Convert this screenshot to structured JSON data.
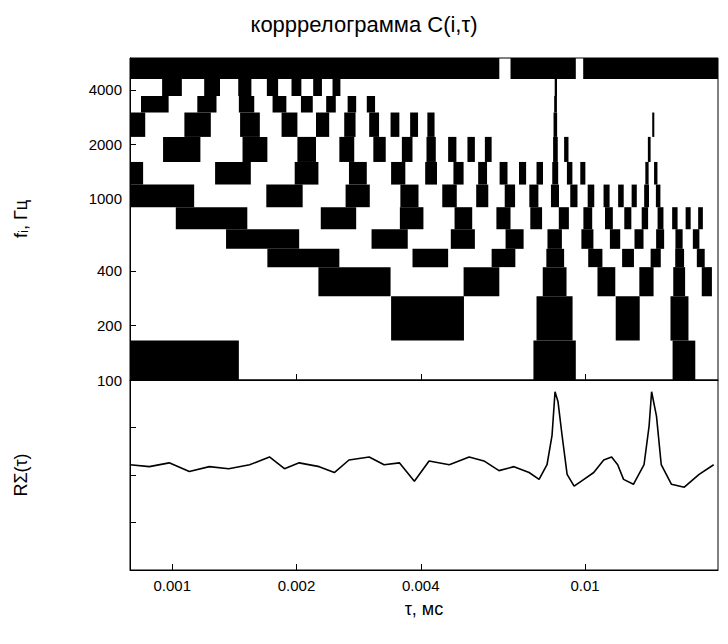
{
  "chart_data": [
    {
      "type": "heatmap",
      "title": "корррелограмма C(i,τ)",
      "y_label": "fᵢ, Гц",
      "log": true,
      "grid": false,
      "tick_labels": "y",
      "color": "#000000",
      "xlim": [
        0.00079,
        0.021
      ],
      "xticks": [
        0.001,
        0.002,
        0.004,
        0.01
      ],
      "ylim": [
        100,
        6000
      ],
      "yticks": [
        100,
        200,
        400,
        1000,
        2000,
        4000
      ],
      "rows": [
        {
          "f_range": [
            100,
            165
          ],
          "black": [
            [
              0.00079,
              0.00145
            ],
            [
              0.0075,
              0.0095
            ],
            [
              0.0163,
              0.0185
            ]
          ]
        },
        {
          "f_range": [
            165,
            290
          ],
          "black": [
            [
              0.00339,
              0.00509
            ],
            [
              0.00763,
              0.00933
            ],
            [
              0.01187,
              0.01357
            ],
            [
              0.01611,
              0.01781
            ]
          ]
        },
        {
          "f_range": [
            290,
            420
          ],
          "black": [
            [
              0.00226,
              0.00338
            ],
            [
              0.00508,
              0.0062
            ],
            [
              0.0079,
              0.00902
            ],
            [
              0.01072,
              0.01184
            ],
            [
              0.01354,
              0.01466
            ],
            [
              0.01636,
              0.01748
            ],
            [
              0.01918,
              0.0203
            ]
          ]
        },
        {
          "f_range": [
            420,
            530
          ],
          "black": [
            [
              0.0017,
              0.00254
            ],
            [
              0.00382,
              0.00466
            ],
            [
              0.00594,
              0.00678
            ],
            [
              0.00806,
              0.0089
            ],
            [
              0.01018,
              0.01102
            ],
            [
              0.0123,
              0.01314
            ],
            [
              0.01442,
              0.01526
            ],
            [
              0.01654,
              0.01738
            ],
            [
              0.01866,
              0.0195
            ]
          ]
        },
        {
          "f_range": [
            530,
            680
          ],
          "black": [
            [
              0.00135,
              0.00203
            ],
            [
              0.00304,
              0.00372
            ],
            [
              0.00473,
              0.00541
            ],
            [
              0.00642,
              0.0071
            ],
            [
              0.00811,
              0.00879
            ],
            [
              0.0098,
              0.01048
            ],
            [
              0.01149,
              0.01217
            ],
            [
              0.01318,
              0.01386
            ],
            [
              0.01487,
              0.01555
            ],
            [
              0.01656,
              0.01724
            ],
            [
              0.01825,
              0.01893
            ]
          ]
        },
        {
          "f_range": [
            680,
            900
          ],
          "black": [
            [
              0.00102,
              0.00152
            ],
            [
              0.00229,
              0.00279
            ],
            [
              0.00356,
              0.00406
            ],
            [
              0.00483,
              0.00533
            ],
            [
              0.0061,
              0.0066
            ],
            [
              0.00737,
              0.00787
            ],
            [
              0.00864,
              0.00914
            ],
            [
              0.00991,
              0.01041
            ],
            [
              0.01118,
              0.01168
            ],
            [
              0.01245,
              0.01295
            ],
            [
              0.01372,
              0.01422
            ],
            [
              0.01499,
              0.01549
            ],
            [
              0.01626,
              0.01676
            ],
            [
              0.01753,
              0.01803
            ],
            [
              0.0188,
              0.0193
            ]
          ]
        },
        {
          "f_range": [
            900,
            1200
          ],
          "black": [
            [
              0.00079,
              0.00113
            ],
            [
              0.00169,
              0.00207
            ],
            [
              0.00263,
              0.00301
            ],
            [
              0.00357,
              0.00395
            ],
            [
              0.00451,
              0.00489
            ],
            [
              0.00545,
              0.00583
            ],
            [
              0.00639,
              0.00677
            ],
            [
              0.00733,
              0.00771
            ],
            [
              0.00827,
              0.00865
            ],
            [
              0.00921,
              0.00959
            ],
            [
              0.01015,
              0.01053
            ],
            [
              0.01109,
              0.01147
            ],
            [
              0.01203,
              0.01241
            ],
            [
              0.01297,
              0.01335
            ],
            [
              0.01391,
              0.01429
            ],
            [
              0.01485,
              0.01523
            ]
          ]
        },
        {
          "f_range": [
            1200,
            1600
          ],
          "black": [
            [
              0.00079,
              0.00085
            ],
            [
              0.00127,
              0.00155
            ],
            [
              0.00198,
              0.00226
            ],
            [
              0.00268,
              0.00296
            ],
            [
              0.00339,
              0.00367
            ],
            [
              0.0041,
              0.00438
            ],
            [
              0.0048,
              0.00508
            ],
            [
              0.00551,
              0.00579
            ],
            [
              0.00621,
              0.00649
            ],
            [
              0.00692,
              0.0072
            ],
            [
              0.00763,
              0.00791
            ],
            [
              0.00833,
              0.00861
            ],
            [
              0.00904,
              0.00932
            ],
            [
              0.00974,
              0.01002
            ],
            [
              0.014,
              0.01426
            ],
            [
              0.0147,
              0.01498
            ]
          ]
        },
        {
          "f_range": [
            1600,
            2200
          ],
          "black": [
            [
              0.00095,
              0.00117
            ],
            [
              0.00148,
              0.0017
            ],
            [
              0.00201,
              0.00223
            ],
            [
              0.00254,
              0.00276
            ],
            [
              0.00307,
              0.00329
            ],
            [
              0.0036,
              0.00382
            ],
            [
              0.00413,
              0.00435
            ],
            [
              0.00466,
              0.00488
            ],
            [
              0.00519,
              0.00541
            ],
            [
              0.00572,
              0.00594
            ],
            [
              0.00837,
              0.00859
            ],
            [
              0.0089,
              0.00912
            ],
            [
              0.0142,
              0.01442
            ]
          ]
        },
        {
          "f_range": [
            2200,
            3000
          ],
          "black": [
            [
              0.00079,
              0.00086
            ],
            [
              0.00107,
              0.00124
            ],
            [
              0.00146,
              0.00163
            ],
            [
              0.00184,
              0.00201
            ],
            [
              0.00223,
              0.0024
            ],
            [
              0.00261,
              0.00278
            ],
            [
              0.003,
              0.00317
            ],
            [
              0.00338,
              0.00355
            ],
            [
              0.00377,
              0.00394
            ],
            [
              0.00415,
              0.00432
            ],
            [
              0.00839,
              0.00856
            ],
            [
              0.01455,
              0.01472
            ]
          ]
        },
        {
          "f_range": [
            3000,
            3700
          ],
          "black": [
            [
              0.00084,
              0.00098
            ],
            [
              0.00115,
              0.00128
            ],
            [
              0.00145,
              0.00158
            ],
            [
              0.00175,
              0.00189
            ],
            [
              0.00205,
              0.00219
            ],
            [
              0.00236,
              0.00249
            ],
            [
              0.00266,
              0.00279
            ],
            [
              0.00296,
              0.0031
            ],
            [
              0.00842,
              0.00855
            ]
          ]
        },
        {
          "f_range": [
            3700,
            4600
          ],
          "black": [
            [
              0.000945,
              0.001055
            ],
            [
              0.001195,
              0.001305
            ],
            [
              0.001445,
              0.001555
            ],
            [
              0.001695,
              0.001805
            ],
            [
              0.001945,
              0.002055
            ],
            [
              0.002195,
              0.002305
            ],
            [
              0.002445,
              0.002555
            ],
            [
              0.008445,
              0.008555
            ]
          ]
        },
        {
          "f_range": [
            4600,
            6000
          ],
          "black": [
            [
              0.00079,
              0.0062
            ],
            [
              0.0066,
              0.0095
            ],
            [
              0.0099,
              0.021
            ]
          ]
        }
      ]
    },
    {
      "type": "line",
      "x_label": "τ, мс",
      "y_label": "RΣ(τ)",
      "log": "x",
      "grid": false,
      "tick_labels": "x",
      "color": "#000000",
      "xlim": [
        0.00079,
        0.021
      ],
      "xticks": [
        0.001,
        0.002,
        0.004,
        0.01
      ],
      "ylim": [
        0,
        1
      ],
      "yticks": [
        0,
        0.25,
        0.5,
        0.75,
        1
      ],
      "x": [
        0.00079,
        0.00088,
        0.000983,
        0.0011,
        0.00123,
        0.00137,
        0.00154,
        0.00172,
        0.00187,
        0.00203,
        0.00227,
        0.00247,
        0.00268,
        0.003,
        0.00326,
        0.00355,
        0.00386,
        0.00419,
        0.00469,
        0.00524,
        0.00569,
        0.00619,
        0.00673,
        0.00732,
        0.00774,
        0.00809,
        0.00832,
        0.00846,
        0.0086,
        0.0088,
        0.00905,
        0.00941,
        0.00994,
        0.0105,
        0.0111,
        0.0116,
        0.012,
        0.0124,
        0.0131,
        0.0139,
        0.0143,
        0.0145,
        0.0149,
        0.0153,
        0.0162,
        0.0174,
        0.0189,
        0.0205
      ],
      "values": [
        0.554,
        0.544,
        0.564,
        0.518,
        0.544,
        0.533,
        0.554,
        0.595,
        0.533,
        0.564,
        0.544,
        0.513,
        0.579,
        0.595,
        0.554,
        0.564,
        0.467,
        0.574,
        0.554,
        0.595,
        0.574,
        0.523,
        0.544,
        0.513,
        0.477,
        0.554,
        0.708,
        0.938,
        0.887,
        0.708,
        0.503,
        0.441,
        0.477,
        0.513,
        0.579,
        0.595,
        0.554,
        0.477,
        0.451,
        0.554,
        0.759,
        0.938,
        0.81,
        0.554,
        0.451,
        0.436,
        0.503,
        0.554
      ]
    }
  ]
}
